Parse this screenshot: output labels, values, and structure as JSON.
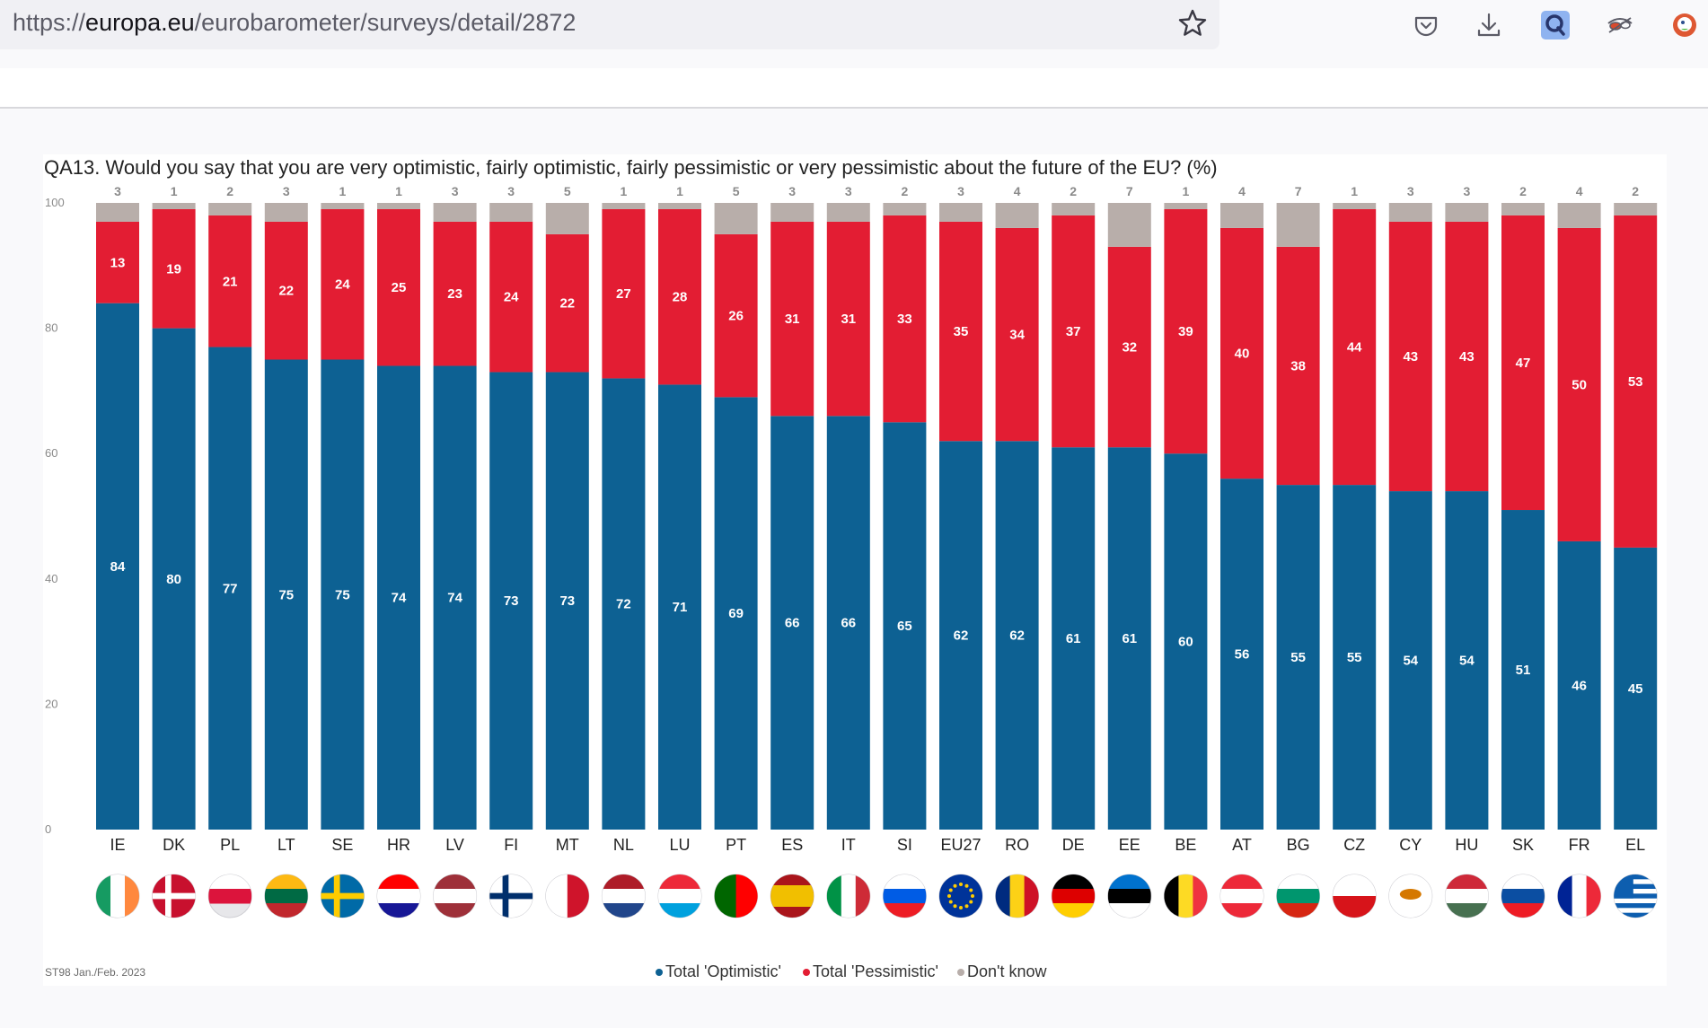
{
  "browser": {
    "url_scheme": "https://",
    "url_domain": "europa.eu",
    "url_path": "/eurobarometer/surveys/detail/2872",
    "icons": [
      "bookmark-star-icon",
      "pocket-icon",
      "downloads-icon",
      "extension-q-icon",
      "extension-glasses-icon",
      "duckduckgo-icon"
    ]
  },
  "colors": {
    "optimistic": "#0d6193",
    "pessimistic": "#e31d33",
    "dont_know": "#b8aeaa"
  },
  "chart_data": {
    "type": "bar",
    "stacked": true,
    "title": "QA13. Would you say that you are very optimistic, fairly optimistic, fairly pessimistic or very pessimistic about the future of the EU? (%)",
    "categories": [
      "IE",
      "DK",
      "PL",
      "LT",
      "SE",
      "HR",
      "LV",
      "FI",
      "MT",
      "NL",
      "LU",
      "PT",
      "ES",
      "IT",
      "SI",
      "EU27",
      "RO",
      "DE",
      "EE",
      "BE",
      "AT",
      "BG",
      "CZ",
      "CY",
      "HU",
      "SK",
      "FR",
      "EL"
    ],
    "series": [
      {
        "name": "Total 'Optimistic'",
        "values": [
          84,
          80,
          77,
          75,
          75,
          74,
          74,
          73,
          73,
          72,
          71,
          69,
          66,
          66,
          65,
          62,
          62,
          61,
          61,
          60,
          56,
          55,
          55,
          54,
          54,
          51,
          46,
          45
        ]
      },
      {
        "name": "Total 'Pessimistic'",
        "values": [
          13,
          19,
          21,
          22,
          24,
          25,
          23,
          24,
          22,
          27,
          28,
          26,
          31,
          31,
          33,
          35,
          34,
          37,
          32,
          39,
          40,
          38,
          44,
          43,
          43,
          47,
          50,
          53
        ]
      },
      {
        "name": "Don't know",
        "values": [
          3,
          1,
          2,
          3,
          1,
          1,
          3,
          3,
          5,
          1,
          1,
          5,
          3,
          3,
          2,
          3,
          4,
          2,
          7,
          1,
          4,
          7,
          1,
          3,
          3,
          2,
          4,
          2
        ]
      }
    ],
    "ylim": [
      0,
      100
    ],
    "yticks": [
      "0",
      "20",
      "40",
      "60",
      "80",
      "100"
    ],
    "legend_position": "bottom",
    "source_note": "ST98 Jan./Feb. 2023"
  }
}
